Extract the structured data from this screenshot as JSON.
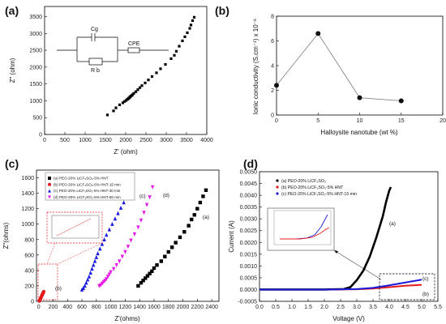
{
  "panel_labels": {
    "a": "(a)",
    "b": "(b)",
    "c": "(c)",
    "d": "(d)"
  },
  "colors": {
    "black": "#000000",
    "red": "#e41a1c",
    "blue": "#1a1adb",
    "magenta": "#e619e6",
    "gray": "#888888"
  },
  "chart_data": [
    {
      "panel": "(a)",
      "type": "scatter",
      "xlabel": "Z' (ohm)",
      "ylabel": "Z\" (ohm)",
      "xlim": [
        0,
        4000
      ],
      "ylim": [
        0,
        3800
      ],
      "xticks": [
        "0",
        "500",
        "1000",
        "1500",
        "2000",
        "2500",
        "3000",
        "3500",
        "4000"
      ],
      "yticks": [
        "0",
        "500",
        "1000",
        "1500",
        "2000",
        "2500",
        "3000",
        "3500"
      ],
      "circuit": {
        "c": "Cg",
        "r": "R b",
        "cpe": "CPE"
      },
      "series": [
        {
          "x": [
            1550,
            1700,
            1760,
            1850,
            1930,
            1970,
            2010,
            2040,
            2060,
            2080,
            2100,
            2110,
            2130,
            2150,
            2170,
            2200,
            2250,
            2300,
            2350,
            2400,
            2480,
            2560,
            2650,
            2760,
            2860,
            2980,
            3120,
            3200,
            3250,
            3320,
            3400,
            3460,
            3520,
            3580,
            3610,
            3650,
            3690
          ],
          "y": [
            580,
            700,
            790,
            880,
            940,
            980,
            1010,
            1040,
            1060,
            1080,
            1100,
            1120,
            1140,
            1160,
            1180,
            1220,
            1270,
            1330,
            1390,
            1450,
            1530,
            1620,
            1720,
            1830,
            1950,
            2080,
            2250,
            2350,
            2470,
            2620,
            2780,
            2900,
            3020,
            3150,
            3250,
            3380,
            3480
          ]
        }
      ]
    },
    {
      "panel": "(b)",
      "type": "line",
      "xlabel": "Halloysite nanotube (wt %)",
      "ylabel": "Ionic conductivity (S.cm⁻¹) x 10⁻⁶",
      "xlim": [
        0,
        20
      ],
      "ylim": [
        0,
        8
      ],
      "xticks": [
        "0",
        "5",
        "10",
        "15",
        "20"
      ],
      "yticks": [
        "0",
        "2",
        "4",
        "6",
        "8"
      ],
      "x": [
        0,
        5,
        10,
        15
      ],
      "y": [
        2.4,
        6.6,
        1.4,
        1.15
      ]
    },
    {
      "panel": "(c)",
      "type": "scatter",
      "xlabel": "Z'(ohms)",
      "ylabel": "Z\"(ohms)",
      "xlim": [
        -30,
        2500
      ],
      "ylim": [
        0,
        1700
      ],
      "xticks": [
        "0",
        "200",
        "400",
        "600",
        "800",
        "1000",
        "1200",
        "1400",
        "1600",
        "1800",
        "2000",
        "2200",
        "2400"
      ],
      "yticks": [
        "0",
        "200",
        "400",
        "600",
        "800",
        "1000",
        "1200",
        "1400",
        "1600"
      ],
      "legend": [
        "(a) PEO-20% LiCF₃SO₃-5% HNT",
        "(b) PEO-20% LiCF₃SO₃-5% HNT-15 min",
        "(c) PEO-20% LiCF₃SO₃-5% HNT-30 min",
        "(d) PEO-20% LiCF₃SO₃-5% HNT-60 min"
      ],
      "curve_labels": [
        "(a)",
        "(b)",
        "(c)",
        "(d)"
      ],
      "series": [
        {
          "marker": "square",
          "color": "#000000",
          "x": [
            1380,
            1420,
            1450,
            1480,
            1510,
            1540,
            1570,
            1600,
            1640,
            1700,
            1750,
            1800,
            1850,
            1900,
            1960,
            2020,
            2080,
            2120,
            2160,
            2200,
            2240,
            2280,
            2320
          ],
          "y": [
            200,
            240,
            270,
            300,
            330,
            360,
            390,
            430,
            470,
            520,
            580,
            640,
            700,
            760,
            830,
            900,
            980,
            1060,
            1120,
            1200,
            1280,
            1360,
            1440
          ]
        },
        {
          "marker": "circle",
          "color": "#e41a1c",
          "x": [
            10,
            15,
            20,
            25,
            30,
            35,
            40,
            45,
            50,
            55,
            60,
            65,
            70
          ],
          "y": [
            5,
            15,
            25,
            35,
            45,
            55,
            65,
            75,
            85,
            95,
            105,
            115,
            125
          ]
        },
        {
          "marker": "triangle",
          "color": "#1a1adb",
          "x": [
            600,
            620,
            640,
            660,
            680,
            700,
            720,
            740,
            760,
            780,
            800,
            820,
            850,
            880,
            910,
            940,
            980,
            1020,
            1060,
            1100,
            1140,
            1180
          ],
          "y": [
            150,
            170,
            200,
            240,
            280,
            320,
            370,
            420,
            470,
            520,
            570,
            620,
            680,
            740,
            800,
            860,
            930,
            1000,
            1070,
            1140,
            1210,
            1280
          ]
        },
        {
          "marker": "triangle-down",
          "color": "#e619e6",
          "x": [
            840,
            860,
            880,
            900,
            920,
            940,
            960,
            980,
            1000,
            1040,
            1080,
            1120,
            1160,
            1200,
            1240,
            1280,
            1330,
            1380,
            1420,
            1460,
            1500,
            1540,
            1580
          ],
          "y": [
            200,
            210,
            230,
            250,
            270,
            290,
            320,
            350,
            380,
            420,
            470,
            520,
            580,
            640,
            710,
            790,
            870,
            960,
            1050,
            1150,
            1250,
            1350,
            1480
          ]
        }
      ]
    },
    {
      "panel": "(d)",
      "type": "line",
      "xlabel": "Voltage (V)",
      "ylabel": "Current (A)",
      "xlim": [
        0,
        5.5
      ],
      "ylim": [
        -0.0005,
        0.005
      ],
      "xticks": [
        "0.0",
        "0.5",
        "1.0",
        "1.5",
        "2.0",
        "2.5",
        "3.0",
        "3.5",
        "4.0",
        "4.5",
        "5.0",
        "5.5"
      ],
      "yticks": [
        "-0.0005",
        "0.0000",
        "0.0005",
        "0.0010",
        "0.0015",
        "0.0020",
        "0.0025",
        "0.0030",
        "0.0035",
        "0.0040",
        "0.0045",
        "0.0050"
      ],
      "legend": [
        "(a) PEO-20% LiCF₃SO₃",
        "(b) PEO-20% LiCF₃SO₃-5% HNT",
        "(c) PEO-20% LiCF₃SO₃-5% HNT-15 min"
      ],
      "curve_labels": [
        "(a)",
        "(b)",
        "(c)"
      ],
      "series": [
        {
          "color": "#000000",
          "x": [
            0.0,
            1.0,
            2.0,
            2.6,
            2.8,
            3.0,
            3.2,
            3.4,
            3.6,
            3.8,
            3.9,
            4.0,
            4.05
          ],
          "y": [
            0.0,
            0.0,
            0.0,
            2e-05,
            0.0001,
            0.0004,
            0.0008,
            0.0014,
            0.0022,
            0.0031,
            0.0037,
            0.0042,
            0.00435
          ]
        },
        {
          "color": "#e41a1c",
          "x": [
            0.0,
            1.0,
            2.0,
            3.0,
            3.5,
            4.0,
            4.5,
            5.0
          ],
          "y": [
            0.0,
            0.0,
            0.0,
            1e-05,
            4e-05,
            0.0001,
            0.00016,
            0.0002
          ]
        },
        {
          "color": "#1a1adb",
          "x": [
            0.0,
            1.0,
            2.0,
            3.0,
            3.5,
            4.0,
            4.5,
            5.0
          ],
          "y": [
            0.0,
            0.0,
            0.0,
            2e-05,
            7e-05,
            0.00018,
            0.0003,
            0.00042
          ]
        }
      ]
    }
  ]
}
